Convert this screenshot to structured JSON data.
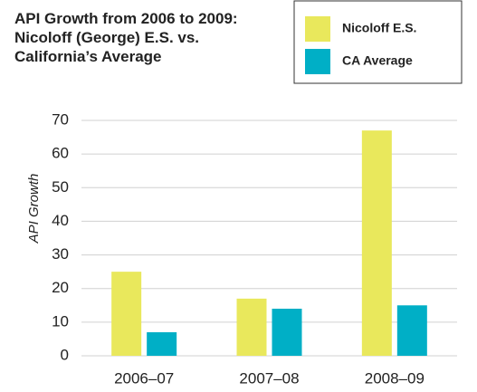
{
  "chart_data": {
    "type": "bar",
    "title": "API Growth from 2006 to 2009: Nicoloff (George) E.S. vs. California’s Average",
    "y_label": "API Growth",
    "categories": [
      "2006–07",
      "2007–08",
      "2008–09"
    ],
    "series": [
      {
        "name": "Nicoloff E.S.",
        "color": "#e9e85c",
        "values": [
          25,
          17,
          67
        ]
      },
      {
        "name": "CA Average",
        "color": "#00afc6",
        "values": [
          7,
          14,
          15
        ]
      }
    ],
    "ylim": [
      0,
      70
    ],
    "yticks": [
      0,
      10,
      20,
      30,
      40,
      50,
      60,
      70
    ],
    "grid": true
  }
}
